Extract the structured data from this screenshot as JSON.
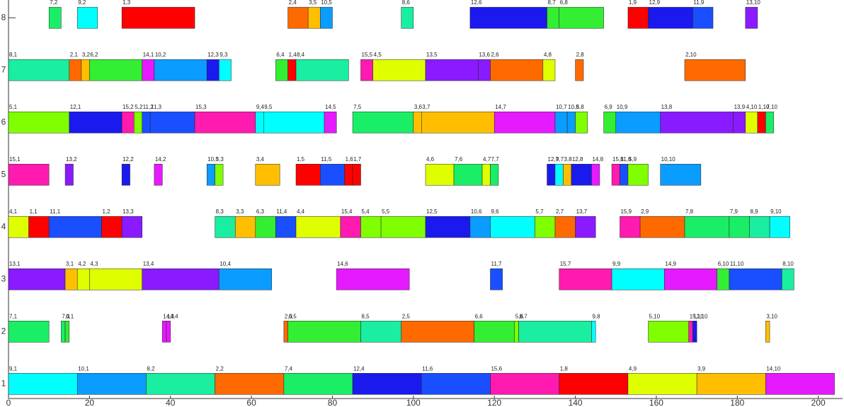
{
  "chart_data": {
    "type": "gantt",
    "xlim": [
      0,
      206
    ],
    "xticks": [
      0,
      20,
      40,
      60,
      80,
      100,
      120,
      140,
      160,
      180,
      200
    ],
    "ylim": [
      0.72,
      8.34
    ],
    "yticks": [
      1,
      2,
      3,
      4,
      5,
      6,
      7,
      8
    ],
    "tasks": [
      {
        "machine": 8,
        "label": "7,2",
        "start": 10,
        "end": 13,
        "color": "#1aee66"
      },
      {
        "machine": 8,
        "label": "9,2",
        "start": 17,
        "end": 22,
        "color": "#00ffff"
      },
      {
        "machine": 8,
        "label": "1,3",
        "start": 28,
        "end": 46,
        "color": "#ff0000"
      },
      {
        "machine": 8,
        "label": "2,4",
        "start": 69,
        "end": 74,
        "color": "#ff6a00"
      },
      {
        "machine": 8,
        "label": "3,5",
        "start": 74,
        "end": 77,
        "color": "#ffbf00"
      },
      {
        "machine": 8,
        "label": "10,5",
        "start": 77,
        "end": 80,
        "color": "#0a9cff"
      },
      {
        "machine": 8,
        "label": "8,6",
        "start": 97,
        "end": 100,
        "color": "#1aeea0"
      },
      {
        "machine": 8,
        "label": "12,6",
        "start": 114,
        "end": 133,
        "color": "#1a1aee"
      },
      {
        "machine": 8,
        "label": "8,7",
        "start": 133,
        "end": 136,
        "color": "#33ee33"
      },
      {
        "machine": 8,
        "label": "6,8",
        "start": 136,
        "end": 147,
        "color": "#33ee33"
      },
      {
        "machine": 8,
        "label": "1,9",
        "start": 153,
        "end": 158,
        "color": "#ff0000"
      },
      {
        "machine": 8,
        "label": "12,9",
        "start": 158,
        "end": 169,
        "color": "#1a1aee"
      },
      {
        "machine": 8,
        "label": "11,9",
        "start": 169,
        "end": 174,
        "color": "#1a4fff"
      },
      {
        "machine": 8,
        "label": "13,10",
        "start": 182,
        "end": 185,
        "color": "#8a1aff"
      },
      {
        "machine": 7,
        "label": "8,1",
        "start": 0,
        "end": 15,
        "color": "#1aeea0"
      },
      {
        "machine": 7,
        "label": "2,1",
        "start": 15,
        "end": 18,
        "color": "#ff6a00"
      },
      {
        "machine": 7,
        "label": "3,2",
        "start": 18,
        "end": 20,
        "color": "#ffbf00"
      },
      {
        "machine": 7,
        "label": "6,2",
        "start": 20,
        "end": 33,
        "color": "#33ee33"
      },
      {
        "machine": 7,
        "label": "14,1",
        "start": 33,
        "end": 36,
        "color": "#e61aff"
      },
      {
        "machine": 7,
        "label": "10,2",
        "start": 36,
        "end": 49,
        "color": "#0a9cff"
      },
      {
        "machine": 7,
        "label": "12,3",
        "start": 49,
        "end": 52,
        "color": "#1a1aee"
      },
      {
        "machine": 7,
        "label": "9,3",
        "start": 52,
        "end": 55,
        "color": "#00ffff"
      },
      {
        "machine": 7,
        "label": "6,4",
        "start": 66,
        "end": 69,
        "color": "#33ee33"
      },
      {
        "machine": 7,
        "label": "1,4",
        "start": 69,
        "end": 71,
        "color": "#ff0000"
      },
      {
        "machine": 7,
        "label": "8,4",
        "start": 71,
        "end": 84,
        "color": "#1aeea0"
      },
      {
        "machine": 7,
        "label": "15,5",
        "start": 87,
        "end": 90,
        "color": "#ff1ab0"
      },
      {
        "machine": 7,
        "label": "4,5",
        "start": 90,
        "end": 103,
        "color": "#dfff00"
      },
      {
        "machine": 7,
        "label": "13,5",
        "start": 103,
        "end": 116,
        "color": "#8a1aff"
      },
      {
        "machine": 7,
        "label": "13,6",
        "start": 116,
        "end": 119,
        "color": "#8a1aff"
      },
      {
        "machine": 7,
        "label": "2,6",
        "start": 119,
        "end": 132,
        "color": "#ff6a00"
      },
      {
        "machine": 7,
        "label": "4,8",
        "start": 132,
        "end": 135,
        "color": "#dfff00"
      },
      {
        "machine": 7,
        "label": "2,8",
        "start": 140,
        "end": 142,
        "color": "#ff6a00"
      },
      {
        "machine": 7,
        "label": "2,10",
        "start": 167,
        "end": 182,
        "color": "#ff6a00"
      },
      {
        "machine": 6,
        "label": "5,1",
        "start": 0,
        "end": 15,
        "color": "#80ff00"
      },
      {
        "machine": 6,
        "label": "12,1",
        "start": 15,
        "end": 28,
        "color": "#1a1aee"
      },
      {
        "machine": 6,
        "label": "15,2",
        "start": 28,
        "end": 31,
        "color": "#ff1ab0"
      },
      {
        "machine": 6,
        "label": "5,2",
        "start": 31,
        "end": 33,
        "color": "#80ff00"
      },
      {
        "machine": 6,
        "label": "11,2",
        "start": 33,
        "end": 35,
        "color": "#1a4fff"
      },
      {
        "machine": 6,
        "label": "11,3",
        "start": 35,
        "end": 46,
        "color": "#1a4fff"
      },
      {
        "machine": 6,
        "label": "15,3",
        "start": 46,
        "end": 61,
        "color": "#ff1ab0"
      },
      {
        "machine": 6,
        "label": "9,4",
        "start": 61,
        "end": 63,
        "color": "#00ffff"
      },
      {
        "machine": 6,
        "label": "9,5",
        "start": 63,
        "end": 78,
        "color": "#00ffff"
      },
      {
        "machine": 6,
        "label": "14,5",
        "start": 78,
        "end": 81,
        "color": "#e61aff"
      },
      {
        "machine": 6,
        "label": "7,5",
        "start": 85,
        "end": 100,
        "color": "#1aee66"
      },
      {
        "machine": 6,
        "label": "3,6",
        "start": 100,
        "end": 102,
        "color": "#ffbf00"
      },
      {
        "machine": 6,
        "label": "3,7",
        "start": 102,
        "end": 120,
        "color": "#ffbf00"
      },
      {
        "machine": 6,
        "label": "14,7",
        "start": 120,
        "end": 135,
        "color": "#e61aff"
      },
      {
        "machine": 6,
        "label": "10,7",
        "start": 135,
        "end": 138,
        "color": "#0a9cff"
      },
      {
        "machine": 6,
        "label": "10,8",
        "start": 138,
        "end": 140,
        "color": "#0a9cff"
      },
      {
        "machine": 6,
        "label": "5,8",
        "start": 140,
        "end": 143,
        "color": "#80ff00"
      },
      {
        "machine": 6,
        "label": "6,9",
        "start": 147,
        "end": 150,
        "color": "#33ee33"
      },
      {
        "machine": 6,
        "label": "10,9",
        "start": 150,
        "end": 161,
        "color": "#0a9cff"
      },
      {
        "machine": 6,
        "label": "13,8",
        "start": 161,
        "end": 179,
        "color": "#8a1aff"
      },
      {
        "machine": 6,
        "label": "13,9",
        "start": 179,
        "end": 182,
        "color": "#8a1aff"
      },
      {
        "machine": 6,
        "label": "4,10",
        "start": 182,
        "end": 185,
        "color": "#dfff00"
      },
      {
        "machine": 6,
        "label": "1,10",
        "start": 185,
        "end": 187,
        "color": "#ff0000"
      },
      {
        "machine": 6,
        "label": "7,10",
        "start": 187,
        "end": 189,
        "color": "#1aee66"
      },
      {
        "machine": 5,
        "label": "15,1",
        "start": 0,
        "end": 10,
        "color": "#ff1ab0"
      },
      {
        "machine": 5,
        "label": "13,2",
        "start": 14,
        "end": 16,
        "color": "#8a1aff"
      },
      {
        "machine": 5,
        "label": "12,2",
        "start": 28,
        "end": 30,
        "color": "#1a1aee"
      },
      {
        "machine": 5,
        "label": "14,2",
        "start": 36,
        "end": 38,
        "color": "#e61aff"
      },
      {
        "machine": 5,
        "label": "10,3",
        "start": 49,
        "end": 51,
        "color": "#0a9cff"
      },
      {
        "machine": 5,
        "label": "5,3",
        "start": 51,
        "end": 53,
        "color": "#80ff00"
      },
      {
        "machine": 5,
        "label": "3,4",
        "start": 61,
        "end": 67,
        "color": "#ffbf00"
      },
      {
        "machine": 5,
        "label": "1,5",
        "start": 71,
        "end": 77,
        "color": "#ff0000"
      },
      {
        "machine": 5,
        "label": "11,5",
        "start": 77,
        "end": 83,
        "color": "#1a4fff"
      },
      {
        "machine": 5,
        "label": "1,6",
        "start": 83,
        "end": 85,
        "color": "#ff0000"
      },
      {
        "machine": 5,
        "label": "1,7",
        "start": 85,
        "end": 87,
        "color": "#ff0000"
      },
      {
        "machine": 5,
        "label": "4,6",
        "start": 103,
        "end": 110,
        "color": "#dfff00"
      },
      {
        "machine": 5,
        "label": "7,6",
        "start": 110,
        "end": 117,
        "color": "#1aee66"
      },
      {
        "machine": 5,
        "label": "4,7",
        "start": 117,
        "end": 119,
        "color": "#dfff00"
      },
      {
        "machine": 5,
        "label": "7,7",
        "start": 119,
        "end": 121,
        "color": "#1aee66"
      },
      {
        "machine": 5,
        "label": "12,7",
        "start": 133,
        "end": 135,
        "color": "#1a1aee"
      },
      {
        "machine": 5,
        "label": "9,7",
        "start": 135,
        "end": 137,
        "color": "#00ffff"
      },
      {
        "machine": 5,
        "label": "3,8",
        "start": 137,
        "end": 139,
        "color": "#ffbf00"
      },
      {
        "machine": 5,
        "label": "12,8",
        "start": 139,
        "end": 144,
        "color": "#1a1aee"
      },
      {
        "machine": 5,
        "label": "14,8",
        "start": 144,
        "end": 146,
        "color": "#e61aff"
      },
      {
        "machine": 5,
        "label": "15,8",
        "start": 149,
        "end": 151,
        "color": "#ff1ab0"
      },
      {
        "machine": 5,
        "label": "11,8",
        "start": 151,
        "end": 153,
        "color": "#1a4fff"
      },
      {
        "machine": 5,
        "label": "5,9",
        "start": 153,
        "end": 158,
        "color": "#80ff00"
      },
      {
        "machine": 5,
        "label": "10,10",
        "start": 161,
        "end": 171,
        "color": "#0a9cff"
      },
      {
        "machine": 4,
        "label": "4,1",
        "start": 0,
        "end": 5,
        "color": "#dfff00"
      },
      {
        "machine": 4,
        "label": "1,1",
        "start": 5,
        "end": 10,
        "color": "#ff0000"
      },
      {
        "machine": 4,
        "label": "11,1",
        "start": 10,
        "end": 23,
        "color": "#1a4fff"
      },
      {
        "machine": 4,
        "label": "1,2",
        "start": 23,
        "end": 28,
        "color": "#ff0000"
      },
      {
        "machine": 4,
        "label": "13,3",
        "start": 28,
        "end": 33,
        "color": "#8a1aff"
      },
      {
        "machine": 4,
        "label": "8,3",
        "start": 51,
        "end": 56,
        "color": "#1aeea0"
      },
      {
        "machine": 4,
        "label": "3,3",
        "start": 56,
        "end": 61,
        "color": "#ffbf00"
      },
      {
        "machine": 4,
        "label": "6,3",
        "start": 61,
        "end": 66,
        "color": "#33ee33"
      },
      {
        "machine": 4,
        "label": "11,4",
        "start": 66,
        "end": 71,
        "color": "#1a4fff"
      },
      {
        "machine": 4,
        "label": "4,4",
        "start": 71,
        "end": 82,
        "color": "#dfff00"
      },
      {
        "machine": 4,
        "label": "15,4",
        "start": 82,
        "end": 87,
        "color": "#ff1ab0"
      },
      {
        "machine": 4,
        "label": "5,4",
        "start": 87,
        "end": 92,
        "color": "#80ff00"
      },
      {
        "machine": 4,
        "label": "5,5",
        "start": 92,
        "end": 103,
        "color": "#80ff00"
      },
      {
        "machine": 4,
        "label": "12,5",
        "start": 103,
        "end": 114,
        "color": "#1a1aee"
      },
      {
        "machine": 4,
        "label": "10,6",
        "start": 114,
        "end": 119,
        "color": "#0a9cff"
      },
      {
        "machine": 4,
        "label": "9,6",
        "start": 119,
        "end": 130,
        "color": "#00ffff"
      },
      {
        "machine": 4,
        "label": "5,7",
        "start": 130,
        "end": 135,
        "color": "#80ff00"
      },
      {
        "machine": 4,
        "label": "2,7",
        "start": 135,
        "end": 140,
        "color": "#ff6a00"
      },
      {
        "machine": 4,
        "label": "13,7",
        "start": 140,
        "end": 145,
        "color": "#8a1aff"
      },
      {
        "machine": 4,
        "label": "15,9",
        "start": 151,
        "end": 156,
        "color": "#ff1ab0"
      },
      {
        "machine": 4,
        "label": "2,9",
        "start": 156,
        "end": 167,
        "color": "#ff6a00"
      },
      {
        "machine": 4,
        "label": "7,8",
        "start": 167,
        "end": 178,
        "color": "#1aee66"
      },
      {
        "machine": 4,
        "label": "7,9",
        "start": 178,
        "end": 183,
        "color": "#1aee66"
      },
      {
        "machine": 4,
        "label": "8,9",
        "start": 183,
        "end": 188,
        "color": "#1aeea0"
      },
      {
        "machine": 4,
        "label": "9,10",
        "start": 188,
        "end": 193,
        "color": "#00ffff"
      },
      {
        "machine": 3,
        "label": "13,1",
        "start": 0,
        "end": 14,
        "color": "#8a1aff"
      },
      {
        "machine": 3,
        "label": "3,1",
        "start": 14,
        "end": 17,
        "color": "#ffbf00"
      },
      {
        "machine": 3,
        "label": "4,2",
        "start": 17,
        "end": 20,
        "color": "#dfff00"
      },
      {
        "machine": 3,
        "label": "4,3",
        "start": 20,
        "end": 33,
        "color": "#dfff00"
      },
      {
        "machine": 3,
        "label": "13,4",
        "start": 33,
        "end": 52,
        "color": "#8a1aff"
      },
      {
        "machine": 3,
        "label": "10,4",
        "start": 52,
        "end": 65,
        "color": "#0a9cff"
      },
      {
        "machine": 3,
        "label": "14,6",
        "start": 81,
        "end": 99,
        "color": "#e61aff"
      },
      {
        "machine": 3,
        "label": "11,7",
        "start": 119,
        "end": 122,
        "color": "#1a4fff"
      },
      {
        "machine": 3,
        "label": "15,7",
        "start": 136,
        "end": 149,
        "color": "#ff1ab0"
      },
      {
        "machine": 3,
        "label": "9,9",
        "start": 149,
        "end": 162,
        "color": "#00ffff"
      },
      {
        "machine": 3,
        "label": "14,9",
        "start": 162,
        "end": 175,
        "color": "#e61aff"
      },
      {
        "machine": 3,
        "label": "6,10",
        "start": 175,
        "end": 178,
        "color": "#33ee33"
      },
      {
        "machine": 3,
        "label": "11,10",
        "start": 178,
        "end": 191,
        "color": "#1a4fff"
      },
      {
        "machine": 3,
        "label": "8,10",
        "start": 191,
        "end": 194,
        "color": "#1aeea0"
      },
      {
        "machine": 2,
        "label": "7,1",
        "start": 0,
        "end": 10,
        "color": "#1aee66"
      },
      {
        "machine": 2,
        "label": "7,3",
        "start": 13,
        "end": 14,
        "color": "#1aee66"
      },
      {
        "machine": 2,
        "label": "6,1",
        "start": 14,
        "end": 15,
        "color": "#33ee33"
      },
      {
        "machine": 2,
        "label": "14,3",
        "start": 38,
        "end": 39,
        "color": "#e61aff"
      },
      {
        "machine": 2,
        "label": "14,4",
        "start": 39,
        "end": 40,
        "color": "#e61aff"
      },
      {
        "machine": 2,
        "label": "2,3",
        "start": 68,
        "end": 69,
        "color": "#ff6a00"
      },
      {
        "machine": 2,
        "label": "6,5",
        "start": 69,
        "end": 87,
        "color": "#33ee33"
      },
      {
        "machine": 2,
        "label": "8,5",
        "start": 87,
        "end": 97,
        "color": "#1aeea0"
      },
      {
        "machine": 2,
        "label": "2,5",
        "start": 97,
        "end": 115,
        "color": "#ff6a00"
      },
      {
        "machine": 2,
        "label": "6,6",
        "start": 115,
        "end": 125,
        "color": "#33ee33"
      },
      {
        "machine": 2,
        "label": "5,6",
        "start": 125,
        "end": 126,
        "color": "#80ff00"
      },
      {
        "machine": 2,
        "label": "8,7",
        "start": 126,
        "end": 144,
        "color": "#1aeea0"
      },
      {
        "machine": 2,
        "label": "9,8",
        "start": 144,
        "end": 145,
        "color": "#00ffff"
      },
      {
        "machine": 2,
        "label": "5,10",
        "start": 158,
        "end": 168,
        "color": "#80ff00"
      },
      {
        "machine": 2,
        "label": "15,10",
        "start": 168,
        "end": 169,
        "color": "#ff1ab0"
      },
      {
        "machine": 2,
        "label": "12,10",
        "start": 169,
        "end": 170,
        "color": "#1a1aee"
      },
      {
        "machine": 2,
        "label": "3,10",
        "start": 187,
        "end": 188,
        "color": "#ffbf00"
      },
      {
        "machine": 1,
        "label": "9,1",
        "start": 0,
        "end": 17,
        "color": "#00ffff"
      },
      {
        "machine": 1,
        "label": "10,1",
        "start": 17,
        "end": 34,
        "color": "#0a9cff"
      },
      {
        "machine": 1,
        "label": "8,2",
        "start": 34,
        "end": 51,
        "color": "#1aeea0"
      },
      {
        "machine": 1,
        "label": "2,2",
        "start": 51,
        "end": 68,
        "color": "#ff6a00"
      },
      {
        "machine": 1,
        "label": "7,4",
        "start": 68,
        "end": 85,
        "color": "#1aee66"
      },
      {
        "machine": 1,
        "label": "12,4",
        "start": 85,
        "end": 102,
        "color": "#1a1aee"
      },
      {
        "machine": 1,
        "label": "11,6",
        "start": 102,
        "end": 119,
        "color": "#1a4fff"
      },
      {
        "machine": 1,
        "label": "15,6",
        "start": 119,
        "end": 136,
        "color": "#ff1ab0"
      },
      {
        "machine": 1,
        "label": "1,8",
        "start": 136,
        "end": 153,
        "color": "#ff0000"
      },
      {
        "machine": 1,
        "label": "4,9",
        "start": 153,
        "end": 170,
        "color": "#dfff00"
      },
      {
        "machine": 1,
        "label": "3,9",
        "start": 170,
        "end": 187,
        "color": "#ffbf00"
      },
      {
        "machine": 1,
        "label": "14,10",
        "start": 187,
        "end": 204,
        "color": "#e61aff"
      }
    ]
  }
}
